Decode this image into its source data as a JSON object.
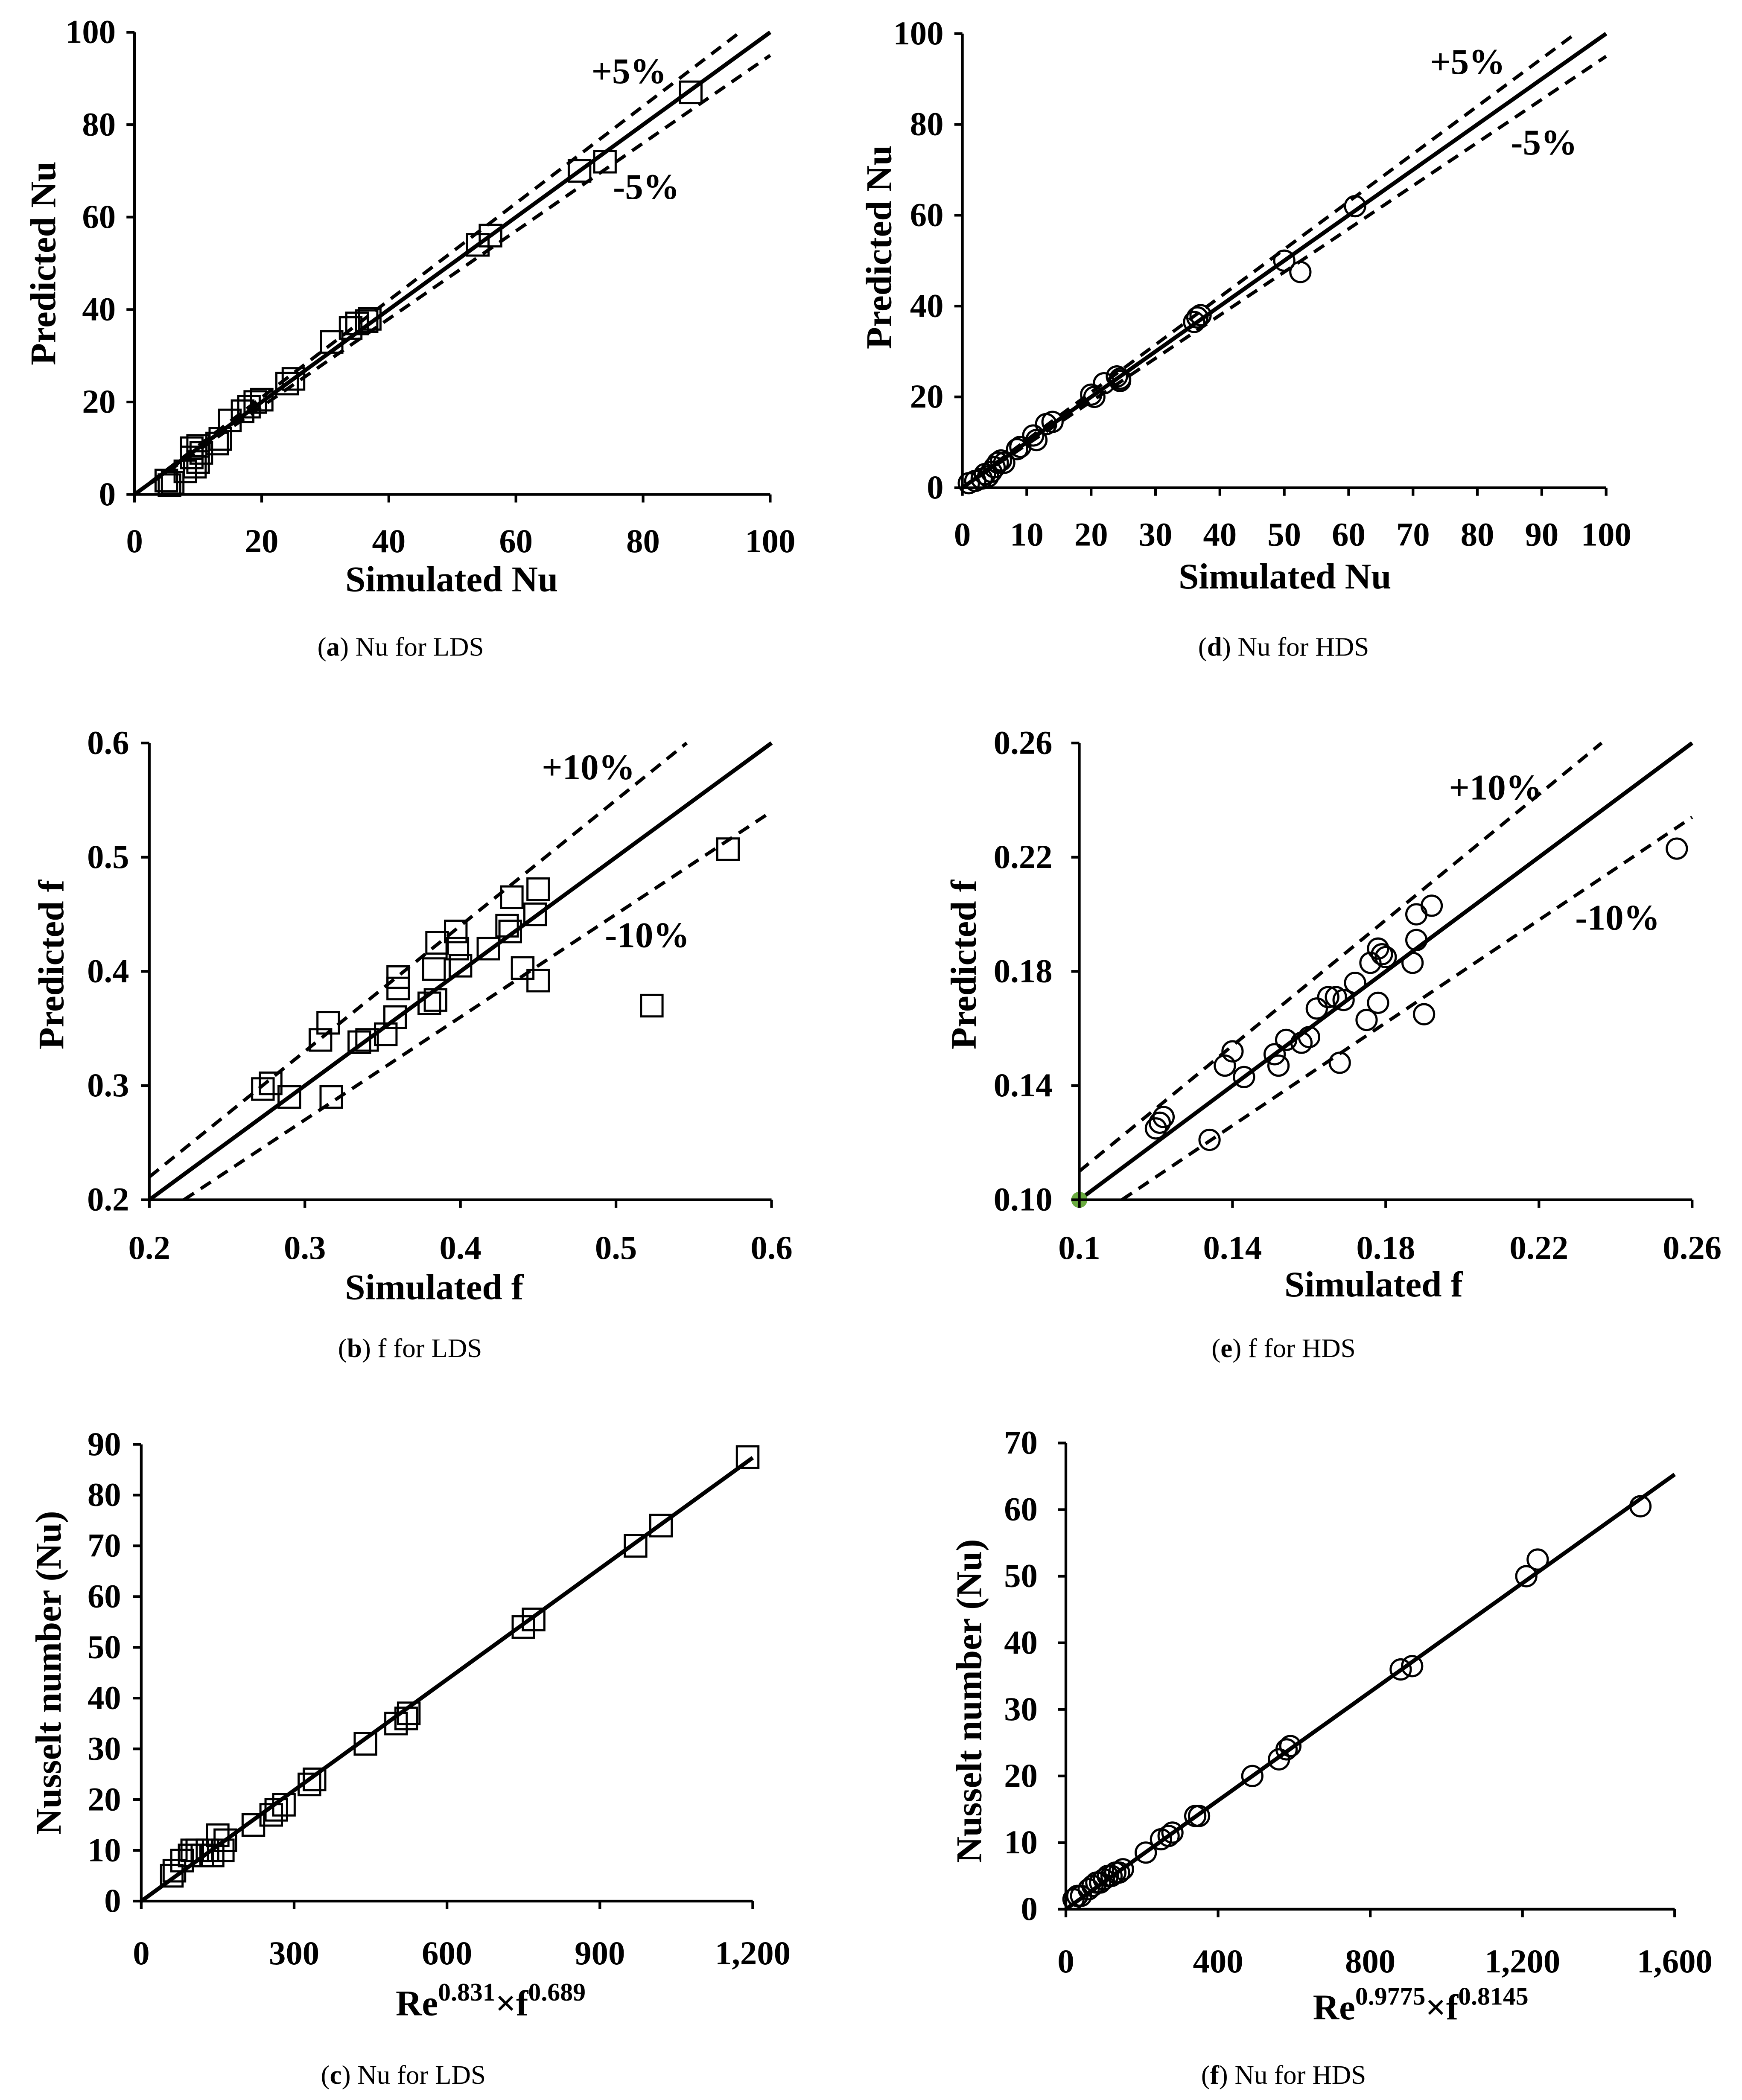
{
  "figure": {
    "background": "#ffffff"
  },
  "chart_data": [
    {
      "type": "scatter",
      "caption": {
        "prefix": "(",
        "letter": "a",
        "suffix": ") Nu for LDS"
      },
      "xlabel": "Simulated Nu",
      "ylabel": "Predicted Nu",
      "xlim": [
        0,
        100
      ],
      "ylim": [
        0,
        100
      ],
      "xticks": [
        0,
        20,
        40,
        60,
        80,
        100
      ],
      "xtick_labels": [
        "0",
        "20",
        "40",
        "60",
        "80",
        "100"
      ],
      "yticks": [
        0,
        20,
        40,
        60,
        80,
        100
      ],
      "ytick_labels": [
        "0",
        "20",
        "40",
        "60",
        "80",
        "100"
      ],
      "marker": "square",
      "marker_color": "#000000",
      "points": [
        [
          5,
          3
        ],
        [
          5.5,
          2
        ],
        [
          6,
          2.5
        ],
        [
          8,
          5
        ],
        [
          9,
          10
        ],
        [
          9,
          8
        ],
        [
          9.5,
          6
        ],
        [
          10,
          10.5
        ],
        [
          10,
          7
        ],
        [
          10.5,
          9
        ],
        [
          13,
          11
        ],
        [
          13.5,
          12
        ],
        [
          15,
          16
        ],
        [
          17,
          18
        ],
        [
          18,
          19
        ],
        [
          19,
          20
        ],
        [
          20,
          20.5
        ],
        [
          24,
          24
        ],
        [
          25,
          25
        ],
        [
          31,
          33
        ],
        [
          34,
          36
        ],
        [
          35,
          37
        ],
        [
          36.5,
          37.5
        ],
        [
          37,
          38
        ],
        [
          54,
          54
        ],
        [
          56,
          56
        ],
        [
          70,
          70
        ],
        [
          74,
          72
        ],
        [
          87.5,
          87
        ]
      ],
      "lines": [
        {
          "slope": 1,
          "intercept": 0,
          "style": "solid"
        },
        {
          "slope": 1.05,
          "intercept": 0,
          "style": "dashed",
          "label": "+5%"
        },
        {
          "slope": 0.95,
          "intercept": 0,
          "style": "dashed",
          "label": "-5%"
        }
      ]
    },
    {
      "type": "scatter",
      "caption": {
        "prefix": "(",
        "letter": "d",
        "suffix": ") Nu for HDS"
      },
      "xlabel": "Simulated Nu",
      "ylabel": "Predicted Nu",
      "xlim": [
        0,
        100
      ],
      "ylim": [
        0,
        100
      ],
      "xticks": [
        0,
        10,
        20,
        30,
        40,
        50,
        60,
        70,
        80,
        90,
        100
      ],
      "xtick_labels": [
        "0",
        "10",
        "20",
        "30",
        "40",
        "50",
        "60",
        "70",
        "80",
        "90",
        "100"
      ],
      "yticks": [
        0,
        20,
        40,
        60,
        80,
        100
      ],
      "ytick_labels": [
        "0",
        "20",
        "40",
        "60",
        "80",
        "100"
      ],
      "marker": "circle",
      "marker_color": "#000000",
      "points": [
        [
          1,
          1
        ],
        [
          2,
          1.5
        ],
        [
          3,
          2
        ],
        [
          3.5,
          3
        ],
        [
          4,
          2.5
        ],
        [
          4.5,
          3.5
        ],
        [
          5,
          4.5
        ],
        [
          5.5,
          5.5
        ],
        [
          6,
          6
        ],
        [
          6.5,
          5.5
        ],
        [
          8.5,
          8.5
        ],
        [
          9,
          9
        ],
        [
          11,
          11.5
        ],
        [
          11.5,
          10.5
        ],
        [
          13,
          14
        ],
        [
          14,
          14.5
        ],
        [
          20,
          20.5
        ],
        [
          20.5,
          20
        ],
        [
          22,
          23
        ],
        [
          24,
          24.5
        ],
        [
          24.5,
          23.5
        ],
        [
          24.5,
          24
        ],
        [
          36,
          36.5
        ],
        [
          36.5,
          37.5
        ],
        [
          37,
          38
        ],
        [
          50,
          50
        ],
        [
          52.5,
          47.5
        ],
        [
          61,
          62
        ]
      ],
      "lines": [
        {
          "slope": 1,
          "intercept": 0,
          "style": "solid"
        },
        {
          "slope": 1.05,
          "intercept": 0,
          "style": "dashed",
          "label": "+5%"
        },
        {
          "slope": 0.95,
          "intercept": 0,
          "style": "dashed",
          "label": "-5%"
        }
      ]
    },
    {
      "type": "scatter",
      "caption": {
        "prefix": "(",
        "letter": "b",
        "suffix": ") f for LDS"
      },
      "xlabel": "Simulated f",
      "ylabel": "Predicted f",
      "xlim": [
        0.2,
        0.6
      ],
      "ylim": [
        0.2,
        0.6
      ],
      "xticks": [
        0.2,
        0.3,
        0.4,
        0.5,
        0.6
      ],
      "xtick_labels": [
        "0.2",
        "0.3",
        "0.4",
        "0.5",
        "0.6"
      ],
      "yticks": [
        0.2,
        0.3,
        0.4,
        0.5,
        0.6
      ],
      "ytick_labels": [
        "0.2",
        "0.3",
        "0.4",
        "0.5",
        "0.6"
      ],
      "marker": "square",
      "marker_color": "#000000",
      "points": [
        [
          0.273,
          0.297
        ],
        [
          0.278,
          0.302
        ],
        [
          0.29,
          0.29
        ],
        [
          0.31,
          0.34
        ],
        [
          0.315,
          0.355
        ],
        [
          0.317,
          0.29
        ],
        [
          0.335,
          0.338
        ],
        [
          0.34,
          0.34
        ],
        [
          0.352,
          0.345
        ],
        [
          0.358,
          0.36
        ],
        [
          0.36,
          0.385
        ],
        [
          0.36,
          0.395
        ],
        [
          0.38,
          0.372
        ],
        [
          0.384,
          0.375
        ],
        [
          0.383,
          0.402
        ],
        [
          0.385,
          0.425
        ],
        [
          0.397,
          0.435
        ],
        [
          0.398,
          0.42
        ],
        [
          0.4,
          0.405
        ],
        [
          0.418,
          0.42
        ],
        [
          0.43,
          0.44
        ],
        [
          0.432,
          0.435
        ],
        [
          0.433,
          0.465
        ],
        [
          0.44,
          0.403
        ],
        [
          0.448,
          0.45
        ],
        [
          0.45,
          0.472
        ],
        [
          0.45,
          0.392
        ],
        [
          0.523,
          0.37
        ],
        [
          0.572,
          0.507
        ]
      ],
      "lines": [
        {
          "slope": 1,
          "intercept": 0,
          "style": "solid"
        },
        {
          "slope": 1.1,
          "intercept": 0,
          "style": "dashed",
          "label": "+10%"
        },
        {
          "slope": 0.9,
          "intercept": 0,
          "style": "dashed",
          "label": "-10%"
        }
      ]
    },
    {
      "type": "scatter",
      "caption": {
        "prefix": "(",
        "letter": "e",
        "suffix": ") f for HDS"
      },
      "xlabel": "Simulated f",
      "ylabel": "Predicted f",
      "xlim": [
        0.1,
        0.26
      ],
      "ylim": [
        0.1,
        0.26
      ],
      "xticks": [
        0.1,
        0.14,
        0.18,
        0.22,
        0.26
      ],
      "xtick_labels": [
        "0.1",
        "0.14",
        "0.18",
        "0.22",
        "0.26"
      ],
      "yticks": [
        0.1,
        0.14,
        0.18,
        0.22,
        0.26
      ],
      "ytick_labels": [
        "0.10",
        "0.14",
        "0.18",
        "0.22",
        "0.26"
      ],
      "marker": "circle",
      "marker_color": "#000000",
      "points": [
        [
          0.12,
          0.125
        ],
        [
          0.121,
          0.127
        ],
        [
          0.122,
          0.129
        ],
        [
          0.134,
          0.121
        ],
        [
          0.138,
          0.147
        ],
        [
          0.14,
          0.152
        ],
        [
          0.143,
          0.143
        ],
        [
          0.151,
          0.151
        ],
        [
          0.152,
          0.147
        ],
        [
          0.154,
          0.156
        ],
        [
          0.158,
          0.155
        ],
        [
          0.16,
          0.157
        ],
        [
          0.162,
          0.167
        ],
        [
          0.165,
          0.171
        ],
        [
          0.167,
          0.171
        ],
        [
          0.168,
          0.148
        ],
        [
          0.169,
          0.17
        ],
        [
          0.172,
          0.176
        ],
        [
          0.175,
          0.163
        ],
        [
          0.176,
          0.183
        ],
        [
          0.178,
          0.188
        ],
        [
          0.179,
          0.186
        ],
        [
          0.178,
          0.169
        ],
        [
          0.18,
          0.185
        ],
        [
          0.187,
          0.183
        ],
        [
          0.188,
          0.191
        ],
        [
          0.188,
          0.2
        ],
        [
          0.19,
          0.165
        ],
        [
          0.192,
          0.203
        ],
        [
          0.256,
          0.223
        ]
      ],
      "highlight_points": [
        {
          "x": 0.1,
          "y": 0.1,
          "color": "#6aab3f"
        }
      ],
      "lines": [
        {
          "slope": 1,
          "intercept": 0,
          "style": "solid"
        },
        {
          "slope": 1.1,
          "intercept": 0,
          "style": "dashed",
          "label": "+10%"
        },
        {
          "slope": 0.9,
          "intercept": 0,
          "style": "dashed",
          "label": "-10%"
        }
      ]
    },
    {
      "type": "scatter",
      "caption": {
        "prefix": "(",
        "letter": "c",
        "suffix": ") Nu for LDS"
      },
      "xlabel_parts": [
        {
          "text": "Re",
          "sup": false
        },
        {
          "text": "0.831",
          "sup": true
        },
        {
          "text": "×f",
          "sup": false
        },
        {
          "text": "0.689",
          "sup": true
        }
      ],
      "ylabel": "Nusselt number (Nu)",
      "xlim": [
        0,
        1200
      ],
      "ylim": [
        0,
        90
      ],
      "xticks": [
        0,
        300,
        600,
        900,
        1200
      ],
      "xtick_labels": [
        "0",
        "300",
        "600",
        "900",
        "1,200"
      ],
      "yticks": [
        0,
        10,
        20,
        30,
        40,
        50,
        60,
        70,
        80,
        90
      ],
      "ytick_labels": [
        "0",
        "10",
        "20",
        "30",
        "40",
        "50",
        "60",
        "70",
        "80",
        "90"
      ],
      "marker": "square",
      "marker_color": "#000000",
      "points": [
        [
          60,
          5
        ],
        [
          65,
          6
        ],
        [
          80,
          8
        ],
        [
          95,
          9
        ],
        [
          100,
          10
        ],
        [
          110,
          10
        ],
        [
          120,
          9
        ],
        [
          130,
          10
        ],
        [
          140,
          9
        ],
        [
          150,
          13
        ],
        [
          160,
          10
        ],
        [
          165,
          12
        ],
        [
          220,
          15
        ],
        [
          255,
          17
        ],
        [
          265,
          18
        ],
        [
          280,
          19
        ],
        [
          330,
          23
        ],
        [
          340,
          24
        ],
        [
          440,
          31
        ],
        [
          500,
          35
        ],
        [
          520,
          36
        ],
        [
          525,
          37
        ],
        [
          750,
          54
        ],
        [
          770,
          55.5
        ],
        [
          970,
          70
        ],
        [
          1020,
          74
        ],
        [
          1190,
          87.5
        ]
      ],
      "lines": [
        {
          "slope": 0.0728,
          "intercept": 0,
          "style": "solid"
        }
      ]
    },
    {
      "type": "scatter",
      "caption": {
        "prefix": "(",
        "letter": "f",
        "suffix": ") Nu for HDS"
      },
      "xlabel_parts": [
        {
          "text": "Re",
          "sup": false
        },
        {
          "text": "0.9775",
          "sup": true
        },
        {
          "text": "×f",
          "sup": false
        },
        {
          "text": "0.8145",
          "sup": true
        }
      ],
      "ylabel": "Nusselt number (Nu)",
      "xlim": [
        0,
        1600
      ],
      "ylim": [
        0,
        70
      ],
      "xticks": [
        0,
        400,
        800,
        1200,
        1600
      ],
      "xtick_labels": [
        "0",
        "400",
        "800",
        "1,200",
        "1,600"
      ],
      "yticks": [
        0,
        10,
        20,
        30,
        40,
        50,
        60,
        70
      ],
      "ytick_labels": [
        "0",
        "10",
        "20",
        "30",
        "40",
        "50",
        "60",
        "70"
      ],
      "marker": "circle",
      "marker_color": "#000000",
      "points": [
        [
          20,
          1.5
        ],
        [
          30,
          2
        ],
        [
          40,
          2
        ],
        [
          60,
          3
        ],
        [
          70,
          3.5
        ],
        [
          80,
          4
        ],
        [
          90,
          4
        ],
        [
          100,
          4.5
        ],
        [
          110,
          5
        ],
        [
          120,
          5
        ],
        [
          130,
          5.5
        ],
        [
          140,
          5.5
        ],
        [
          150,
          6
        ],
        [
          210,
          8.5
        ],
        [
          250,
          10.5
        ],
        [
          270,
          11
        ],
        [
          280,
          11.5
        ],
        [
          340,
          14
        ],
        [
          350,
          14
        ],
        [
          490,
          20
        ],
        [
          560,
          22.5
        ],
        [
          580,
          24
        ],
        [
          590,
          24.5
        ],
        [
          880,
          36
        ],
        [
          910,
          36.5
        ],
        [
          1210,
          50
        ],
        [
          1240,
          52.5
        ],
        [
          1510,
          60.5
        ]
      ],
      "lines": [
        {
          "slope": 0.0408,
          "intercept": 0,
          "style": "solid"
        }
      ]
    }
  ]
}
